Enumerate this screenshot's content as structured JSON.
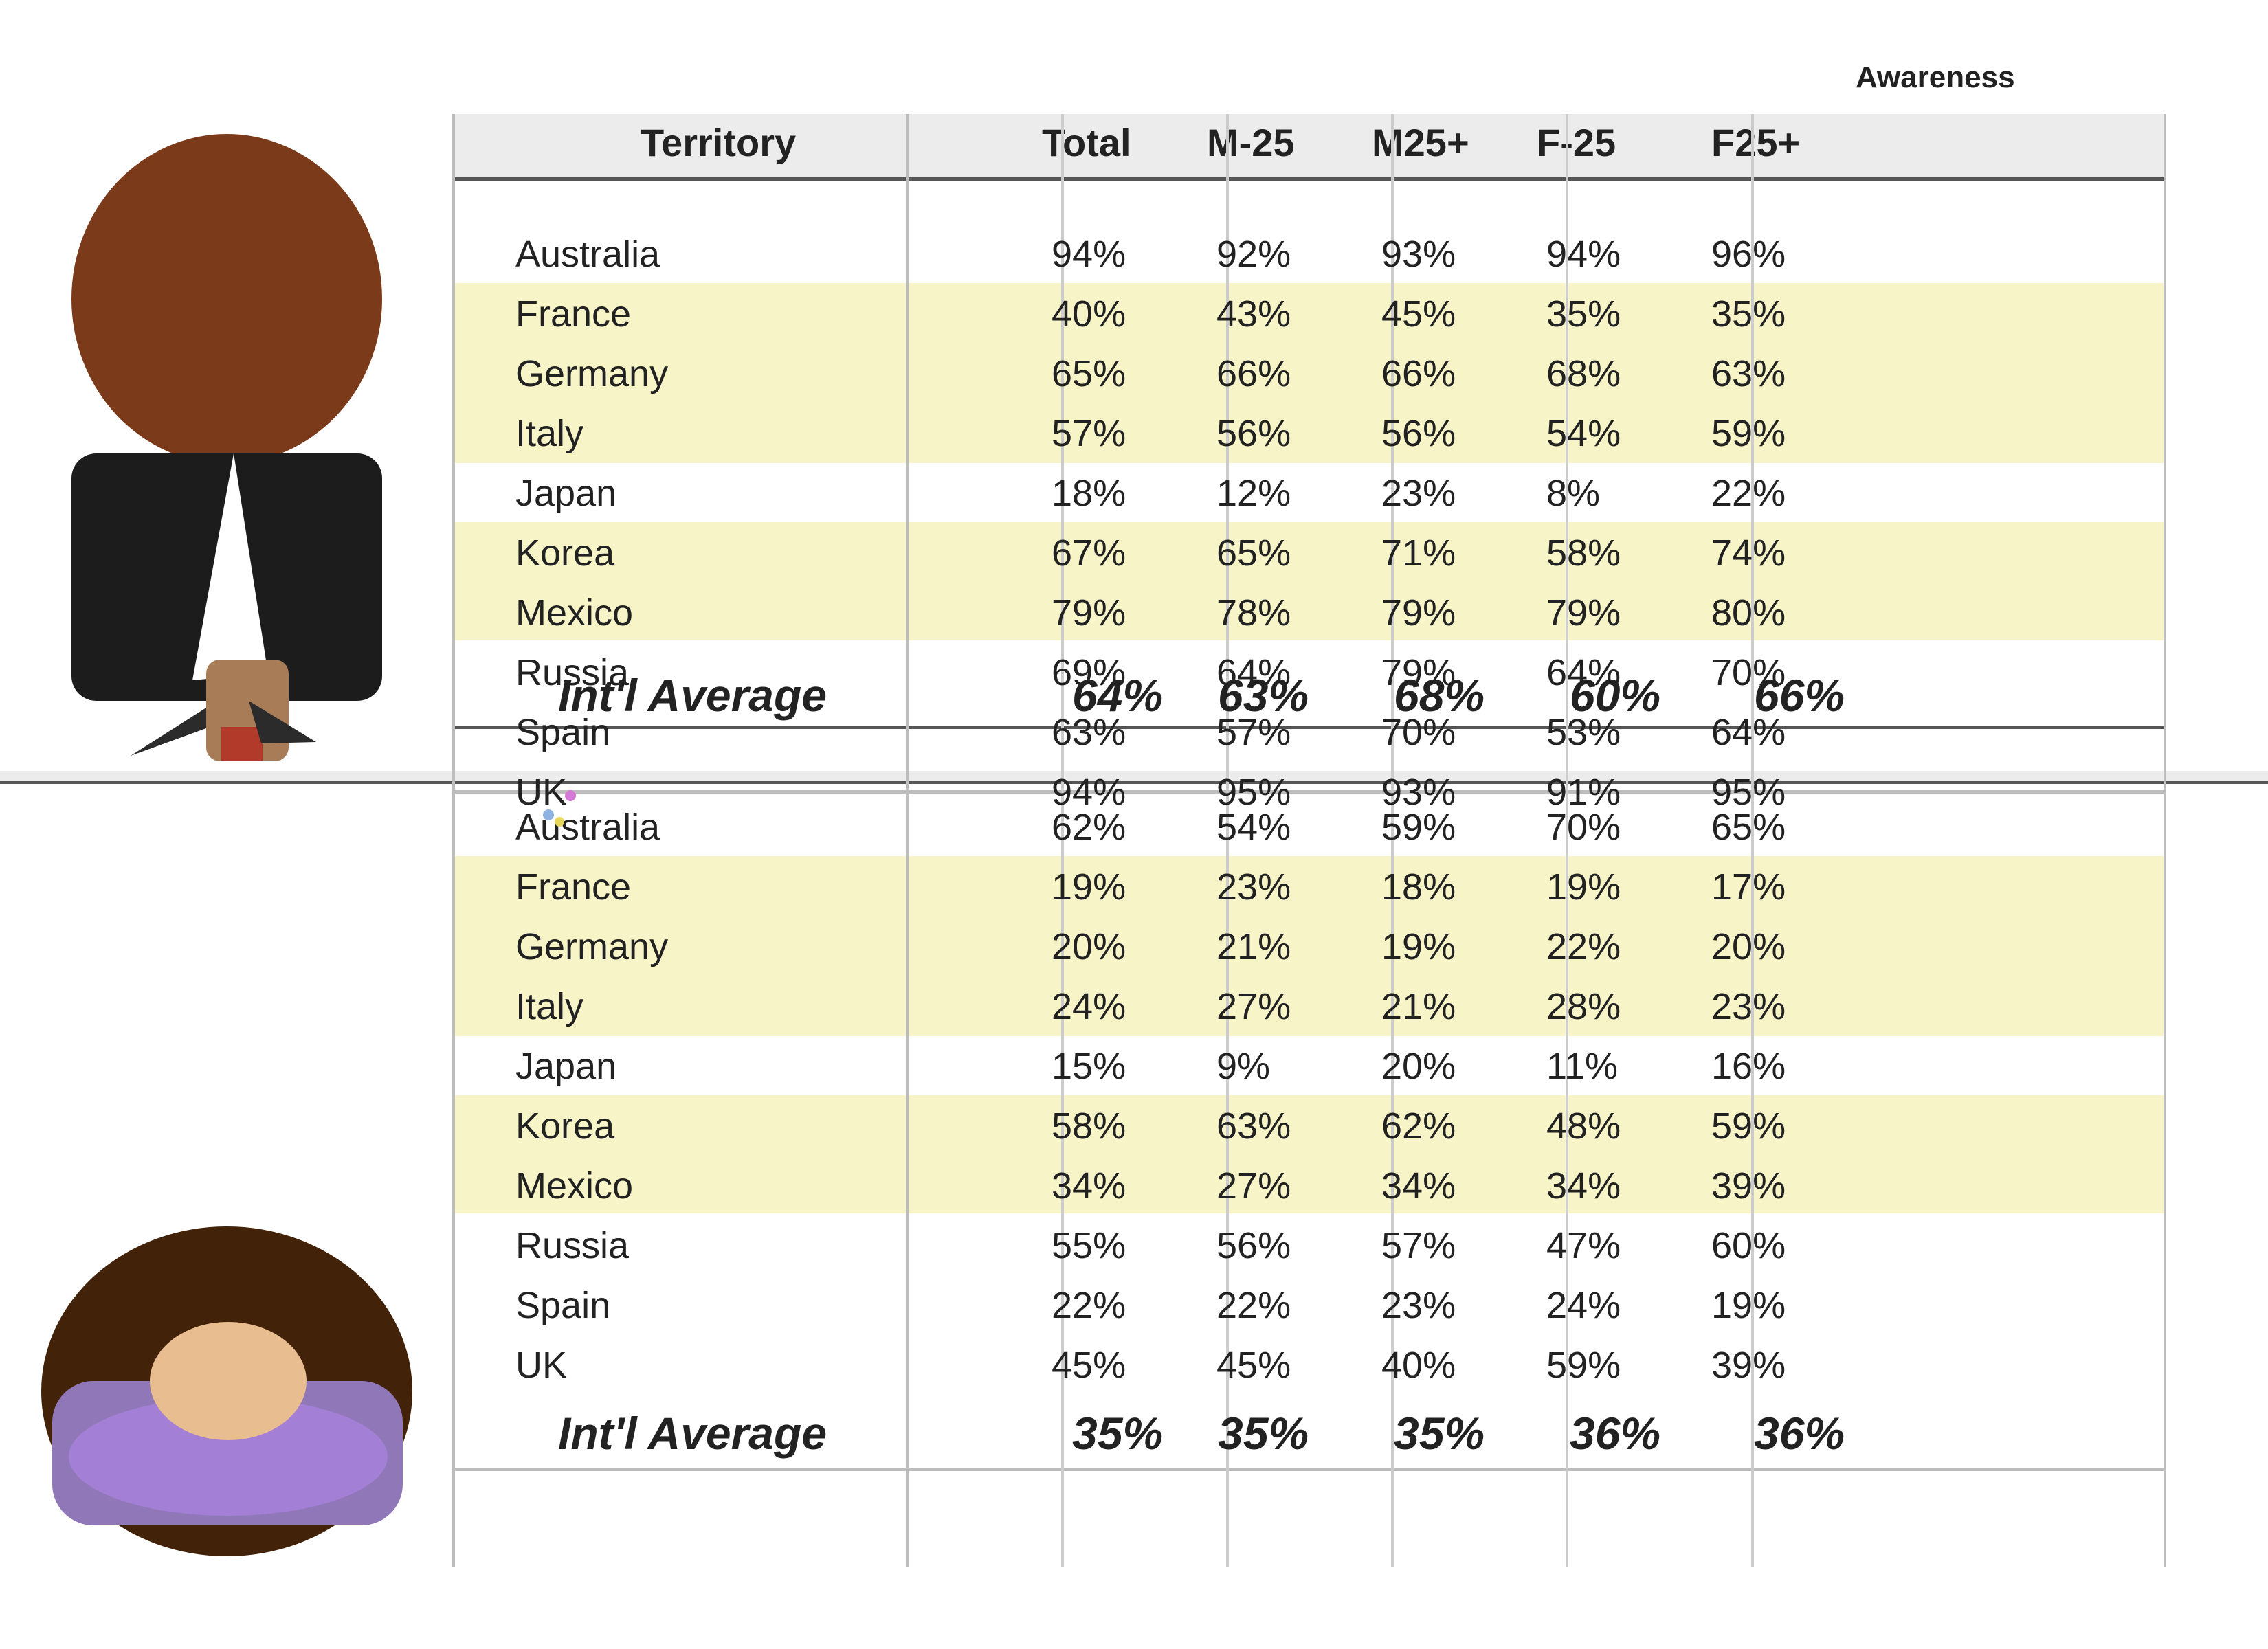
{
  "awareness_title": "Awareness",
  "header": [
    "Territory",
    "Total",
    "M-25",
    "M25+",
    "F-25",
    "F25+"
  ],
  "table_top": {
    "rows": [
      {
        "territory": "Australia",
        "values": [
          "94%",
          "92%",
          "93%",
          "94%",
          "96%"
        ]
      },
      {
        "territory": "France",
        "values": [
          "40%",
          "43%",
          "45%",
          "35%",
          "35%"
        ]
      },
      {
        "territory": "Germany",
        "values": [
          "65%",
          "66%",
          "66%",
          "68%",
          "63%"
        ]
      },
      {
        "territory": "Italy",
        "values": [
          "57%",
          "56%",
          "56%",
          "54%",
          "59%"
        ]
      },
      {
        "territory": "Japan",
        "values": [
          "18%",
          "12%",
          "23%",
          "8%",
          "22%"
        ]
      },
      {
        "territory": "Korea",
        "values": [
          "67%",
          "65%",
          "71%",
          "58%",
          "74%"
        ]
      },
      {
        "territory": "Mexico",
        "values": [
          "79%",
          "78%",
          "79%",
          "79%",
          "80%"
        ]
      },
      {
        "territory": "Russia",
        "values": [
          "69%",
          "64%",
          "79%",
          "64%",
          "70%"
        ]
      },
      {
        "territory": "Spain",
        "values": [
          "63%",
          "57%",
          "70%",
          "53%",
          "64%"
        ]
      },
      {
        "territory": "UK",
        "values": [
          "94%",
          "95%",
          "93%",
          "91%",
          "95%"
        ]
      }
    ],
    "average": {
      "label": "Int'l Average",
      "values": [
        "64%",
        "63%",
        "68%",
        "60%",
        "66%"
      ]
    }
  },
  "table_bottom": {
    "rows": [
      {
        "territory": "Australia",
        "values": [
          "62%",
          "54%",
          "59%",
          "70%",
          "65%"
        ]
      },
      {
        "territory": "France",
        "values": [
          "19%",
          "23%",
          "18%",
          "19%",
          "17%"
        ]
      },
      {
        "territory": "Germany",
        "values": [
          "20%",
          "21%",
          "19%",
          "22%",
          "20%"
        ]
      },
      {
        "territory": "Italy",
        "values": [
          "24%",
          "27%",
          "21%",
          "28%",
          "23%"
        ]
      },
      {
        "territory": "Japan",
        "values": [
          "15%",
          "9%",
          "20%",
          "11%",
          "16%"
        ]
      },
      {
        "territory": "Korea",
        "values": [
          "58%",
          "63%",
          "62%",
          "48%",
          "59%"
        ]
      },
      {
        "territory": "Mexico",
        "values": [
          "34%",
          "27%",
          "34%",
          "34%",
          "39%"
        ]
      },
      {
        "territory": "Russia",
        "values": [
          "55%",
          "56%",
          "57%",
          "47%",
          "60%"
        ]
      },
      {
        "territory": "Spain",
        "values": [
          "22%",
          "22%",
          "23%",
          "24%",
          "19%"
        ]
      },
      {
        "territory": "UK",
        "values": [
          "45%",
          "45%",
          "40%",
          "59%",
          "39%"
        ]
      }
    ],
    "average": {
      "label": "Int'l Average",
      "values": [
        "35%",
        "35%",
        "35%",
        "36%",
        "36%"
      ]
    }
  },
  "colors": {
    "row_highlight": "#f7f5c8",
    "header_band": "#ececec",
    "grid_line": "#bdbdbd",
    "strong_line": "#555555"
  },
  "illustrations": [
    "person-figure-icon",
    "woman-avatar-icon"
  ]
}
